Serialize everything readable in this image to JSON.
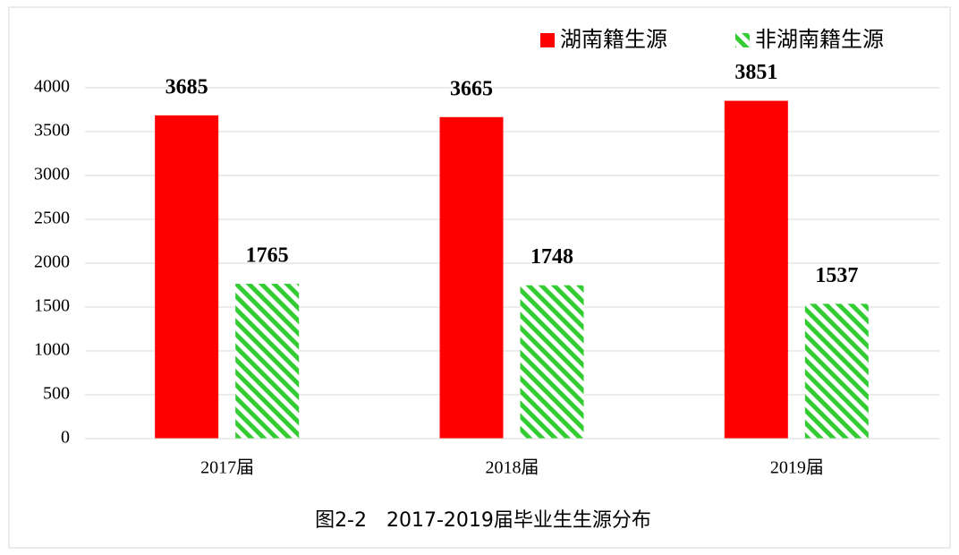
{
  "chart_data": {
    "type": "bar",
    "title": "图2-2　2017-2019届毕业生生源分布",
    "categories": [
      "2017届",
      "2018届",
      "2019届"
    ],
    "series": [
      {
        "name": "湖南籍生源",
        "color": "#ff0000",
        "values": [
          3685,
          3665,
          3851
        ]
      },
      {
        "name": "非湖南籍生源",
        "color": "#33cc33",
        "values": [
          1765,
          1748,
          1537
        ]
      }
    ],
    "ylim": [
      0,
      4000
    ],
    "yticks": [
      0,
      500,
      1000,
      1500,
      2000,
      2500,
      3000,
      3500,
      4000
    ],
    "grid": true,
    "legend": "top-right"
  }
}
